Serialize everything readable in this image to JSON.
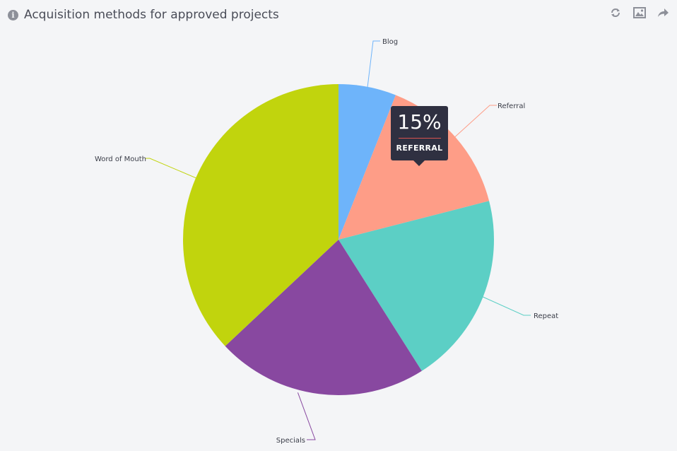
{
  "header": {
    "title": "Acquisition methods for approved projects",
    "info_icon": "info-icon",
    "tools": [
      "refresh-icon",
      "image-icon",
      "share-icon"
    ]
  },
  "chart_data": {
    "type": "pie",
    "title": "Acquisition methods for approved projects",
    "categories": [
      "Blog",
      "Referral",
      "Repeat",
      "Specials",
      "Word of Mouth"
    ],
    "values": [
      6,
      15,
      20,
      22,
      37
    ],
    "colors": [
      "#6eb4fa",
      "#fe9d87",
      "#5ccfc5",
      "#8848a0",
      "#c1d40d"
    ],
    "start_angle_deg": 0,
    "direction": "clockwise"
  },
  "tooltip": {
    "value": "15%",
    "label": "REFERRAL"
  }
}
